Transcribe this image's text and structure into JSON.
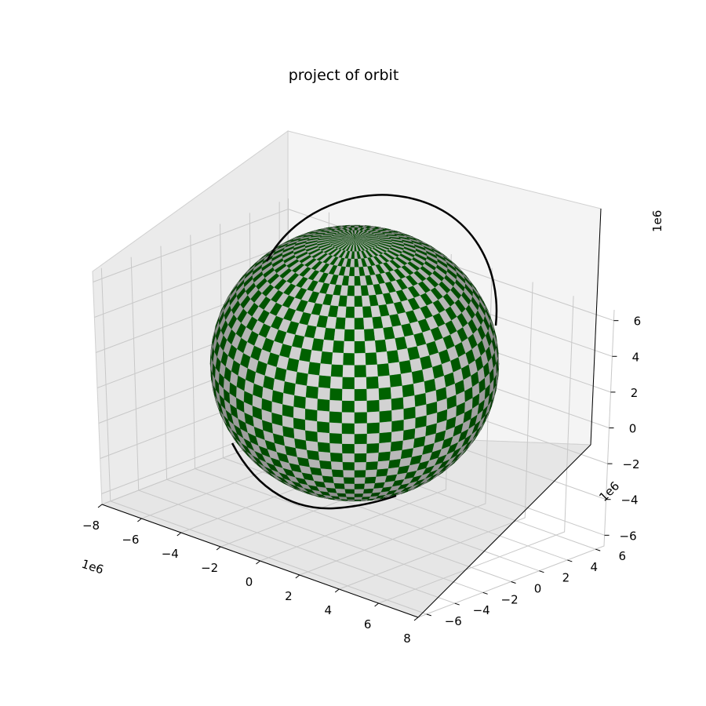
{
  "chart_data": {
    "type": "3d-surface",
    "title": "project of orbit",
    "xlabel": "",
    "ylabel": "",
    "zlabel": "",
    "x_offset_label": "1e6",
    "y_offset_label": "1e6",
    "z_offset_label": "1e6",
    "x_ticks": [
      "−8",
      "−6",
      "−4",
      "−2",
      "0",
      "2",
      "4",
      "6",
      "8"
    ],
    "y_ticks": [
      "−6",
      "−4",
      "−2",
      "0",
      "2",
      "4",
      "6"
    ],
    "z_ticks": [
      "−6",
      "−4",
      "−2",
      "0",
      "2",
      "4",
      "6"
    ],
    "xlim": [
      -8,
      8
    ],
    "ylim": [
      -6.6,
      6.6
    ],
    "zlim": [
      -6.6,
      6.6
    ],
    "units_scale": 1000000,
    "grid": true,
    "series": [
      {
        "kind": "sphere-surface",
        "radius": 6.378,
        "center": [
          0,
          0,
          0
        ],
        "checker_colors": [
          "#006400",
          "#d9d9d9"
        ]
      },
      {
        "kind": "orbit-line",
        "color": "#000000",
        "approx_radius": 7.0,
        "approx_inclination_deg": 45
      }
    ],
    "pane_color": "#f2f2f2",
    "grid_color": "#c8c8c8"
  }
}
